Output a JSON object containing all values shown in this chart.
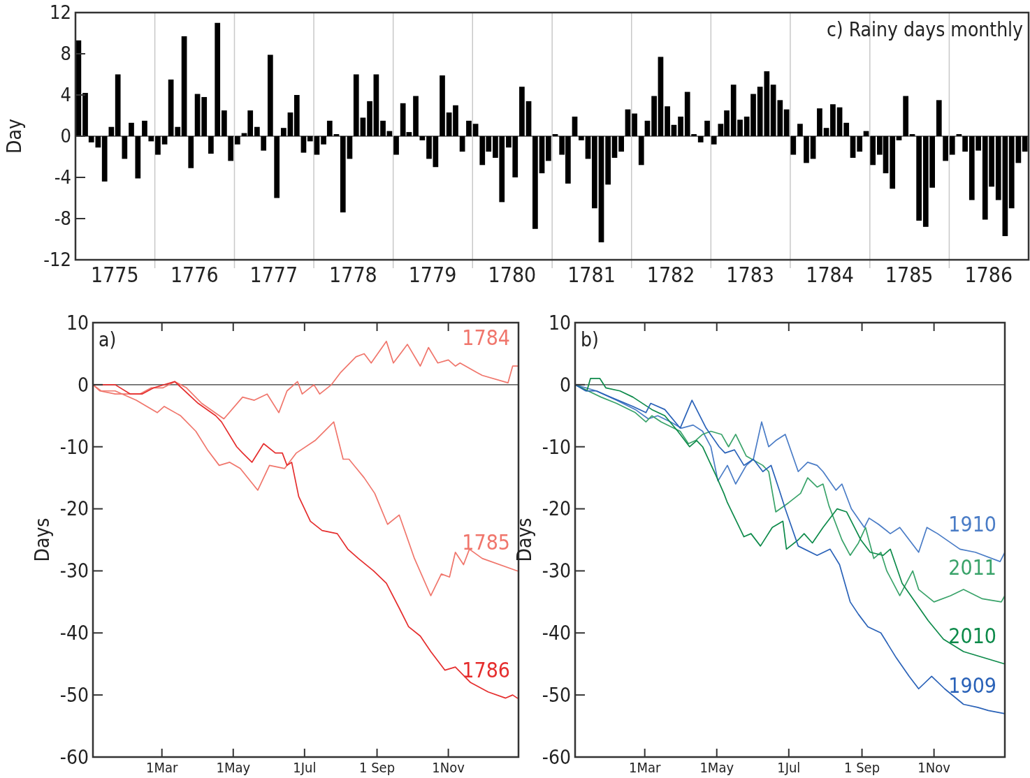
{
  "chart_data": [
    {
      "type": "bar",
      "title": "c) Rainy days  monthly",
      "ylabel": "Day",
      "color": "#000000",
      "x": [
        "1775-01-15",
        "1775-02-15",
        "1775-03-15",
        "1775-04-15",
        "1775-05-15",
        "1775-06-15",
        "1775-07-15",
        "1775-08-15",
        "1775-09-15",
        "1775-10-15",
        "1775-11-15",
        "1775-12-15",
        "1776-01-15",
        "1776-02-15",
        "1776-03-15",
        "1776-04-15",
        "1776-05-15",
        "1776-06-15",
        "1776-07-15",
        "1776-08-15",
        "1776-09-15",
        "1776-10-15",
        "1776-11-15",
        "1776-12-15",
        "1777-01-15",
        "1777-02-15",
        "1777-03-15",
        "1777-04-15",
        "1777-05-15",
        "1777-06-15",
        "1777-07-15",
        "1777-08-15",
        "1777-09-15",
        "1777-10-15",
        "1777-11-15",
        "1777-12-15",
        "1778-01-15",
        "1778-02-15",
        "1778-03-15",
        "1778-04-15",
        "1778-05-15",
        "1778-06-15",
        "1778-07-15",
        "1778-08-15",
        "1778-09-15",
        "1778-10-15",
        "1778-11-15",
        "1778-12-15",
        "1779-01-15",
        "1779-02-15",
        "1779-03-15",
        "1779-04-15",
        "1779-05-15",
        "1779-06-15",
        "1779-07-15",
        "1779-08-15",
        "1779-09-15",
        "1779-10-15",
        "1779-11-15",
        "1779-12-15",
        "1780-01-15",
        "1780-02-15",
        "1780-03-15",
        "1780-04-15",
        "1780-05-15",
        "1780-06-15",
        "1780-07-15",
        "1780-08-15",
        "1780-09-15",
        "1780-10-15",
        "1780-11-15",
        "1780-12-15",
        "1781-01-15",
        "1781-02-15",
        "1781-03-15",
        "1781-04-15",
        "1781-05-15",
        "1781-06-15",
        "1781-07-15",
        "1781-08-15",
        "1781-09-15",
        "1781-10-15",
        "1781-11-15",
        "1781-12-15",
        "1782-01-15",
        "1782-02-15",
        "1782-03-15",
        "1782-04-15",
        "1782-05-15",
        "1782-06-15",
        "1782-07-15",
        "1782-08-15",
        "1782-09-15",
        "1782-10-15",
        "1782-11-15",
        "1782-12-15",
        "1783-01-15",
        "1783-02-15",
        "1783-03-15",
        "1783-04-15",
        "1783-05-15",
        "1783-06-15",
        "1783-07-15",
        "1783-08-15",
        "1783-09-15",
        "1783-10-15",
        "1783-11-15",
        "1783-12-15",
        "1784-01-15",
        "1784-02-15",
        "1784-03-15",
        "1784-04-15",
        "1784-05-15",
        "1784-06-15",
        "1784-07-15",
        "1784-08-15",
        "1784-09-15",
        "1784-10-15",
        "1784-11-15",
        "1784-12-15",
        "1785-01-15",
        "1785-02-15",
        "1785-03-15",
        "1785-04-15",
        "1785-05-15",
        "1785-06-15",
        "1785-07-15",
        "1785-08-15",
        "1785-09-15",
        "1785-10-15",
        "1785-11-15",
        "1785-12-15",
        "1786-01-15",
        "1786-02-15",
        "1786-03-15",
        "1786-04-15",
        "1786-05-15",
        "1786-06-15",
        "1786-07-15",
        "1786-08-15",
        "1786-09-15",
        "1786-10-15",
        "1786-11-15",
        "1786-12-15"
      ],
      "values": [
        9.3,
        4.2,
        -0.6,
        -1.1,
        -4.4,
        0.9,
        6.0,
        -2.2,
        1.3,
        -4.1,
        1.5,
        -0.5,
        -1.8,
        -0.8,
        5.5,
        0.9,
        9.7,
        -3.1,
        4.1,
        3.8,
        -1.7,
        11.0,
        2.5,
        -2.4,
        -0.8,
        0.3,
        2.5,
        0.9,
        -1.4,
        7.9,
        -6.0,
        0.8,
        2.3,
        4.0,
        -1.6,
        -0.5,
        -1.8,
        -0.8,
        1.5,
        0.2,
        -7.4,
        -2.2,
        6.0,
        1.8,
        3.4,
        6.0,
        1.5,
        0.5,
        -1.8,
        3.2,
        0.4,
        3.9,
        -0.4,
        -2.2,
        -3.0,
        5.9,
        2.3,
        3.0,
        -1.5,
        1.5,
        1.2,
        -2.8,
        -1.5,
        -2.1,
        -6.4,
        -1.1,
        -4.0,
        4.8,
        3.4,
        -9.0,
        -3.6,
        -2.4,
        0.2,
        -1.8,
        -4.6,
        1.9,
        -0.4,
        -2.2,
        -7.0,
        -10.3,
        -4.7,
        -2.1,
        -1.5,
        2.6,
        2.2,
        -2.8,
        1.5,
        3.9,
        7.7,
        2.9,
        1.1,
        1.9,
        4.3,
        0.2,
        -0.6,
        1.5,
        -0.8,
        1.2,
        2.5,
        5.0,
        1.6,
        1.9,
        4.1,
        4.8,
        6.3,
        5.0,
        3.5,
        2.6,
        -1.8,
        1.2,
        -2.6,
        -2.2,
        2.7,
        0.8,
        3.1,
        2.8,
        1.3,
        -2.1,
        -1.5,
        0.5,
        -2.8,
        -1.8,
        -3.6,
        -5.1,
        -0.4,
        3.9,
        0.2,
        -8.2,
        -8.8,
        -5.0,
        3.5,
        -2.4,
        -1.8,
        0.2,
        -1.5,
        -6.2,
        -1.4,
        -8.1,
        -4.9,
        -6.2,
        -9.7,
        -7.0,
        -2.6,
        -1.5
      ],
      "xlim": [
        "1775-01-01",
        "1787-01-01"
      ],
      "xticks": [
        {
          "value": "1775-07-01",
          "label": "1775"
        },
        {
          "value": "1776-07-01",
          "label": "1776"
        },
        {
          "value": "1777-07-01",
          "label": "1777"
        },
        {
          "value": "1778-07-01",
          "label": "1778"
        },
        {
          "value": "1779-07-01",
          "label": "1779"
        },
        {
          "value": "1780-07-01",
          "label": "1780"
        },
        {
          "value": "1781-07-01",
          "label": "1781"
        },
        {
          "value": "1782-07-01",
          "label": "1782"
        },
        {
          "value": "1783-07-01",
          "label": "1783"
        },
        {
          "value": "1784-07-01",
          "label": "1784"
        },
        {
          "value": "1785-07-01",
          "label": "1785"
        },
        {
          "value": "1786-07-01",
          "label": "1786"
        }
      ],
      "ylim": [
        -12,
        12
      ],
      "yticks": [
        -12,
        -8,
        -4,
        0,
        4,
        8,
        12
      ],
      "ref_lines": [
        {
          "axis": "y",
          "value": 0,
          "color": "#000000"
        },
        {
          "axis": "x",
          "value": "1776-01-01",
          "color": "#c8c8c8"
        },
        {
          "axis": "x",
          "value": "1777-01-01",
          "color": "#c8c8c8"
        },
        {
          "axis": "x",
          "value": "1778-01-01",
          "color": "#c8c8c8"
        },
        {
          "axis": "x",
          "value": "1779-01-01",
          "color": "#c8c8c8"
        },
        {
          "axis": "x",
          "value": "1780-01-01",
          "color": "#c8c8c8"
        },
        {
          "axis": "x",
          "value": "1781-01-01",
          "color": "#c8c8c8"
        },
        {
          "axis": "x",
          "value": "1782-01-01",
          "color": "#c8c8c8"
        },
        {
          "axis": "x",
          "value": "1783-01-01",
          "color": "#c8c8c8"
        },
        {
          "axis": "x",
          "value": "1784-01-01",
          "color": "#c8c8c8"
        },
        {
          "axis": "x",
          "value": "1785-01-01",
          "color": "#c8c8c8"
        },
        {
          "axis": "x",
          "value": "1786-01-01",
          "color": "#c8c8c8"
        }
      ]
    },
    {
      "type": "line",
      "title": "a)",
      "ylabel": "Days",
      "xlim": [
        "--01-01",
        "--12-31"
      ],
      "xticks": [
        {
          "value": "--03-01",
          "label": "1Mar"
        },
        {
          "value": "--05-01",
          "label": "1May"
        },
        {
          "value": "--07-01",
          "label": "1Jul"
        },
        {
          "value": "--09-01",
          "label": "1 Sep"
        },
        {
          "value": "--11-01",
          "label": "1Nov"
        }
      ],
      "ylim": [
        -60,
        10
      ],
      "yticks": [
        -60,
        -50,
        -40,
        -30,
        -20,
        -10,
        0,
        10
      ],
      "ref_lines": [
        {
          "axis": "y",
          "value": 0,
          "color": "#333333"
        }
      ],
      "series": [
        {
          "name": "1784",
          "color": "#f0766c",
          "x": [
            "--01-01",
            "--01-07",
            "--01-20",
            "--02-10",
            "--02-20",
            "--03-02",
            "--03-12",
            "--03-22",
            "--04-04",
            "--04-23",
            "--05-09",
            "--05-19",
            "--05-30",
            "--06-09",
            "--06-16",
            "--06-25",
            "--06-29",
            "--07-09",
            "--07-14",
            "--07-24",
            "--08-01",
            "--08-14",
            "--08-21",
            "--08-27",
            "--09-09",
            "--09-15",
            "--09-27",
            "--10-08",
            "--10-15",
            "--10-23",
            "--11-01",
            "--11-07",
            "--11-11",
            "--11-25",
            "--11-30",
            "--12-22",
            "--12-26",
            "--12-30"
          ],
          "values": [
            0,
            -1,
            -1.5,
            -1.5,
            -0.5,
            -0.5,
            0.5,
            -0.5,
            -3,
            -5.5,
            -2,
            -2.5,
            -1.5,
            -4.5,
            -1,
            0.5,
            -1.5,
            0,
            -1.5,
            0,
            2,
            4.5,
            5,
            3.5,
            7,
            3.5,
            6.5,
            3,
            6,
            3.5,
            4,
            3,
            3.5,
            2,
            1.5,
            0.3,
            3,
            3
          ]
        },
        {
          "name": "1785",
          "color": "#f0766c",
          "x": [
            "--01-01",
            "--01-08",
            "--01-20",
            "--02-07",
            "--02-25",
            "--03-03",
            "--03-17",
            "--03-30",
            "--04-09",
            "--04-19",
            "--04-28",
            "--05-07",
            "--05-22",
            "--06-01",
            "--06-14",
            "--06-24",
            "--07-10",
            "--07-26",
            "--08-03",
            "--08-08",
            "--08-21",
            "--08-30",
            "--09-10",
            "--09-20",
            "--10-03",
            "--10-17",
            "--10-26",
            "--11-02",
            "--11-07",
            "--11-14",
            "--11-19",
            "--11-30",
            "--12-30"
          ],
          "values": [
            0,
            -1,
            -1,
            -2.5,
            -4.5,
            -3.5,
            -5,
            -7.5,
            -10.5,
            -13,
            -12.5,
            -13.5,
            -17,
            -13,
            -13.5,
            -11,
            -9,
            -6,
            -12,
            -12,
            -15,
            -17.5,
            -22.5,
            -21,
            -28,
            -34,
            -30.5,
            -31,
            -27,
            -29,
            -26.5,
            -28,
            -30
          ]
        },
        {
          "name": "1786",
          "color": "#e52d2d",
          "x": [
            "--01-01",
            "--01-20",
            "--02-02",
            "--02-12",
            "--02-22",
            "--03-12",
            "--04-01",
            "--04-16",
            "--04-21",
            "--05-04",
            "--05-09",
            "--05-17",
            "--05-27",
            "--06-06",
            "--06-12",
            "--06-16",
            "--06-20",
            "--06-26",
            "--07-06",
            "--07-16",
            "--07-29",
            "--08-07",
            "--08-16",
            "--08-29",
            "--09-09",
            "--09-20",
            "--09-28",
            "--10-08",
            "--10-17",
            "--10-29",
            "--11-07",
            "--11-20",
            "--12-05",
            "--12-20",
            "--12-26",
            "--12-30"
          ],
          "values": [
            0,
            0,
            -1.5,
            -1.5,
            -0.5,
            0.5,
            -3,
            -5,
            -6,
            -10,
            -11,
            -12.5,
            -9.5,
            -11,
            -11,
            -13,
            -12.5,
            -18,
            -22,
            -23.5,
            -24,
            -26.5,
            -28,
            -30,
            -32,
            -36,
            -39,
            -40.5,
            -43,
            -46,
            -45.5,
            -48,
            -49.5,
            -50.5,
            -50,
            -50.5
          ]
        }
      ]
    },
    {
      "type": "line",
      "title": "b)",
      "ylabel": "Days",
      "xlim": [
        "--01-01",
        "--12-31"
      ],
      "xticks": [
        {
          "value": "--03-01",
          "label": "1Mar"
        },
        {
          "value": "--05-01",
          "label": "1May"
        },
        {
          "value": "--07-01",
          "label": "1Jul"
        },
        {
          "value": "--09-01",
          "label": "1 Sep"
        },
        {
          "value": "--11-01",
          "label": "1Nov"
        }
      ],
      "ylim": [
        -60,
        10
      ],
      "yticks": [
        -60,
        -50,
        -40,
        -30,
        -20,
        -10,
        0,
        10
      ],
      "ref_lines": [
        {
          "axis": "y",
          "value": 0,
          "color": "#333333"
        }
      ],
      "series": [
        {
          "name": "1910",
          "color": "#4a7cc6",
          "x": [
            "--01-01",
            "--01-19",
            "--02-05",
            "--02-21",
            "--03-04",
            "--03-12",
            "--03-23",
            "--04-01",
            "--04-11",
            "--04-19",
            "--04-26",
            "--05-02",
            "--05-10",
            "--05-17",
            "--05-26",
            "--06-01",
            "--06-08",
            "--06-14",
            "--06-20",
            "--06-28",
            "--07-09",
            "--07-17",
            "--07-25",
            "--07-30",
            "--08-10",
            "--08-15",
            "--08-23",
            "--09-03",
            "--09-07",
            "--09-15",
            "--09-25",
            "--10-03",
            "--10-19",
            "--10-26",
            "--11-04",
            "--11-23",
            "--12-06",
            "--12-27",
            "--12-31"
          ],
          "values": [
            0,
            -1,
            -2.5,
            -4,
            -5.5,
            -5,
            -6,
            -7,
            -6.5,
            -7.5,
            -10,
            -15.5,
            -13,
            -16,
            -13,
            -12,
            -6,
            -10,
            -9,
            -8,
            -14,
            -12.5,
            -13,
            -14,
            -17,
            -16,
            -20,
            -23,
            -21.5,
            -22.5,
            -24,
            -23,
            -27,
            -23,
            -24,
            -26.5,
            -27,
            -28.5,
            -27
          ]
        },
        {
          "name": "2011",
          "color": "#3aa36a",
          "x": [
            "--01-01",
            "--01-12",
            "--01-23",
            "--02-05",
            "--02-21",
            "--03-02",
            "--03-07",
            "--03-15",
            "--03-31",
            "--04-07",
            "--04-13",
            "--04-19",
            "--04-26",
            "--05-05",
            "--05-11",
            "--05-17",
            "--05-26",
            "--06-09",
            "--06-14",
            "--06-20",
            "--07-01",
            "--07-11",
            "--07-17",
            "--07-25",
            "--07-30",
            "--08-04",
            "--08-15",
            "--08-22",
            "--08-29",
            "--09-04",
            "--09-11",
            "--09-17",
            "--09-22",
            "--10-03",
            "--10-14",
            "--10-19",
            "--11-01",
            "--11-15",
            "--11-26",
            "--12-12",
            "--12-28",
            "--12-31"
          ],
          "values": [
            0,
            -1,
            -2,
            -3,
            -4.5,
            -6,
            -5,
            -6,
            -7.5,
            -9.5,
            -9,
            -8,
            -7.5,
            -8,
            -10,
            -8,
            -11.5,
            -13,
            -14,
            -20.5,
            -19,
            -17.5,
            -15,
            -16.5,
            -16,
            -19.5,
            -25,
            -27.5,
            -25.5,
            -23,
            -28,
            -27,
            -30,
            -34,
            -30,
            -33,
            -35,
            -34,
            -33,
            -34.5,
            -35,
            -34
          ]
        },
        {
          "name": "2010",
          "color": "#0d8a4a",
          "x": [
            "--01-01",
            "--01-11",
            "--01-14",
            "--01-22",
            "--01-27",
            "--02-08",
            "--02-19",
            "--03-07",
            "--03-18",
            "--03-29",
            "--04-08",
            "--04-14",
            "--04-19",
            "--04-30",
            "--05-07",
            "--05-10",
            "--05-24",
            "--05-30",
            "--06-07",
            "--06-17",
            "--06-26",
            "--06-29",
            "--07-09",
            "--07-14",
            "--07-21",
            "--07-30",
            "--08-11",
            "--08-19",
            "--08-31",
            "--09-08",
            "--09-19",
            "--09-25",
            "--10-05",
            "--10-27",
            "--11-09",
            "--11-26",
            "--12-31"
          ],
          "values": [
            0,
            -1,
            1,
            1,
            -0.5,
            -1,
            -2,
            -4,
            -5,
            -7.5,
            -10,
            -9,
            -10,
            -14.5,
            -17.5,
            -19,
            -24.5,
            -24,
            -26,
            -23,
            -22,
            -26.5,
            -25,
            -24,
            -25.5,
            -23,
            -20,
            -20.5,
            -25,
            -27,
            -27.5,
            -26.5,
            -32,
            -38,
            -41,
            -43,
            -45
          ]
        },
        {
          "name": "1909",
          "color": "#2a62b8",
          "x": [
            "--01-01",
            "--01-10",
            "--01-19",
            "--01-31",
            "--02-19",
            "--03-02",
            "--03-06",
            "--03-18",
            "--03-31",
            "--04-10",
            "--04-22",
            "--05-03",
            "--05-08",
            "--05-16",
            "--05-24",
            "--06-01",
            "--06-09",
            "--06-16",
            "--06-23",
            "--06-28",
            "--07-09",
            "--07-25",
            "--08-05",
            "--08-13",
            "--08-22",
            "--08-29",
            "--09-06",
            "--09-17",
            "--09-30",
            "--10-11",
            "--10-19",
            "--10-30",
            "--11-10",
            "--11-26",
            "--12-08",
            "--12-17",
            "--12-31"
          ],
          "values": [
            0,
            -1,
            -1,
            -2,
            -3.5,
            -4.5,
            -3,
            -4,
            -7,
            -2.5,
            -7,
            -10,
            -11,
            -10.5,
            -13,
            -12,
            -14,
            -13,
            -17,
            -20,
            -26,
            -27.5,
            -26.5,
            -29,
            -35,
            -37,
            -39,
            -40,
            -44,
            -47,
            -49,
            -47,
            -49,
            -51.5,
            -52,
            -52.5,
            -53
          ]
        }
      ]
    }
  ]
}
